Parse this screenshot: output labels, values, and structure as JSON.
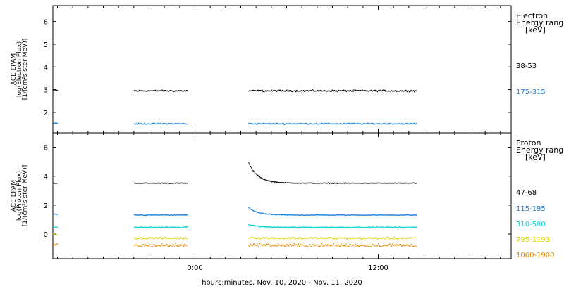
{
  "chart_data": {
    "type": "scatter",
    "xlabel": "hours:minutes, Nov. 10, 2020 - Nov. 11, 2020",
    "x_ticks": [
      {
        "value": 0,
        "label": "0:00"
      },
      {
        "value": 12,
        "label": "12:00"
      }
    ],
    "xlim": [
      -9.3,
      20.7
    ],
    "data_windows": [
      [
        -4,
        -0.5
      ],
      [
        3.5,
        14.5
      ]
    ],
    "panels": [
      {
        "id": "electron",
        "ylabel_lines": [
          "ACE EPAM",
          "log(Electron Flux)",
          "[1/(cm²s ster MeV)]"
        ],
        "ylim": [
          1.1,
          6.7
        ],
        "y_ticks": [
          2,
          3,
          4,
          5,
          6
        ],
        "legend_title_lines": [
          "Electron",
          "Energy range",
          "[keV]"
        ],
        "series": [
          {
            "name": "38-53",
            "color": "#000000",
            "baseline": 2.97,
            "jitter": 0.05,
            "early": [
              [
                -9.3,
                -9.0,
                3.0
              ]
            ]
          },
          {
            "name": "175-315",
            "color": "#1e7fd7",
            "baseline": 1.52,
            "jitter": 0.04,
            "early": [
              [
                -9.3,
                -9.0,
                1.55
              ]
            ]
          }
        ]
      },
      {
        "id": "proton",
        "ylabel_lines": [
          "ACE EPAM",
          "log(Proton Flux)",
          "[1/(cm²s ster MeV)]"
        ],
        "ylim": [
          -1.7,
          7
        ],
        "y_ticks": [
          0,
          2,
          4,
          6
        ],
        "legend_title_lines": [
          "Proton",
          "Energy range",
          "[keV]"
        ],
        "series": [
          {
            "name": "47-68",
            "color": "#000000",
            "baseline": 3.55,
            "jitter": 0.03,
            "spike": 1.4,
            "early": [
              [
                -9.3,
                -9.0,
                3.55
              ]
            ]
          },
          {
            "name": "115-195",
            "color": "#1e7fd7",
            "baseline": 1.35,
            "jitter": 0.04,
            "spike": 0.5,
            "early": [
              [
                -9.3,
                -9.0,
                1.4
              ]
            ]
          },
          {
            "name": "310-580",
            "color": "#00d0d8",
            "baseline": 0.5,
            "jitter": 0.05,
            "spike": 0.2,
            "early": [
              [
                -9.3,
                -9.0,
                0.5
              ]
            ]
          },
          {
            "name": "795-1193",
            "color": "#e0d000",
            "baseline": -0.25,
            "jitter": 0.1,
            "spike": 0.05,
            "early": [
              [
                -9.3,
                -9.0,
                0.0
              ]
            ]
          },
          {
            "name": "1060-1900",
            "color": "#e88a00",
            "baseline": -0.75,
            "jitter": 0.18,
            "spike": 0.05,
            "early": [
              [
                -9.3,
                -9.0,
                -0.7
              ]
            ]
          }
        ]
      }
    ]
  }
}
